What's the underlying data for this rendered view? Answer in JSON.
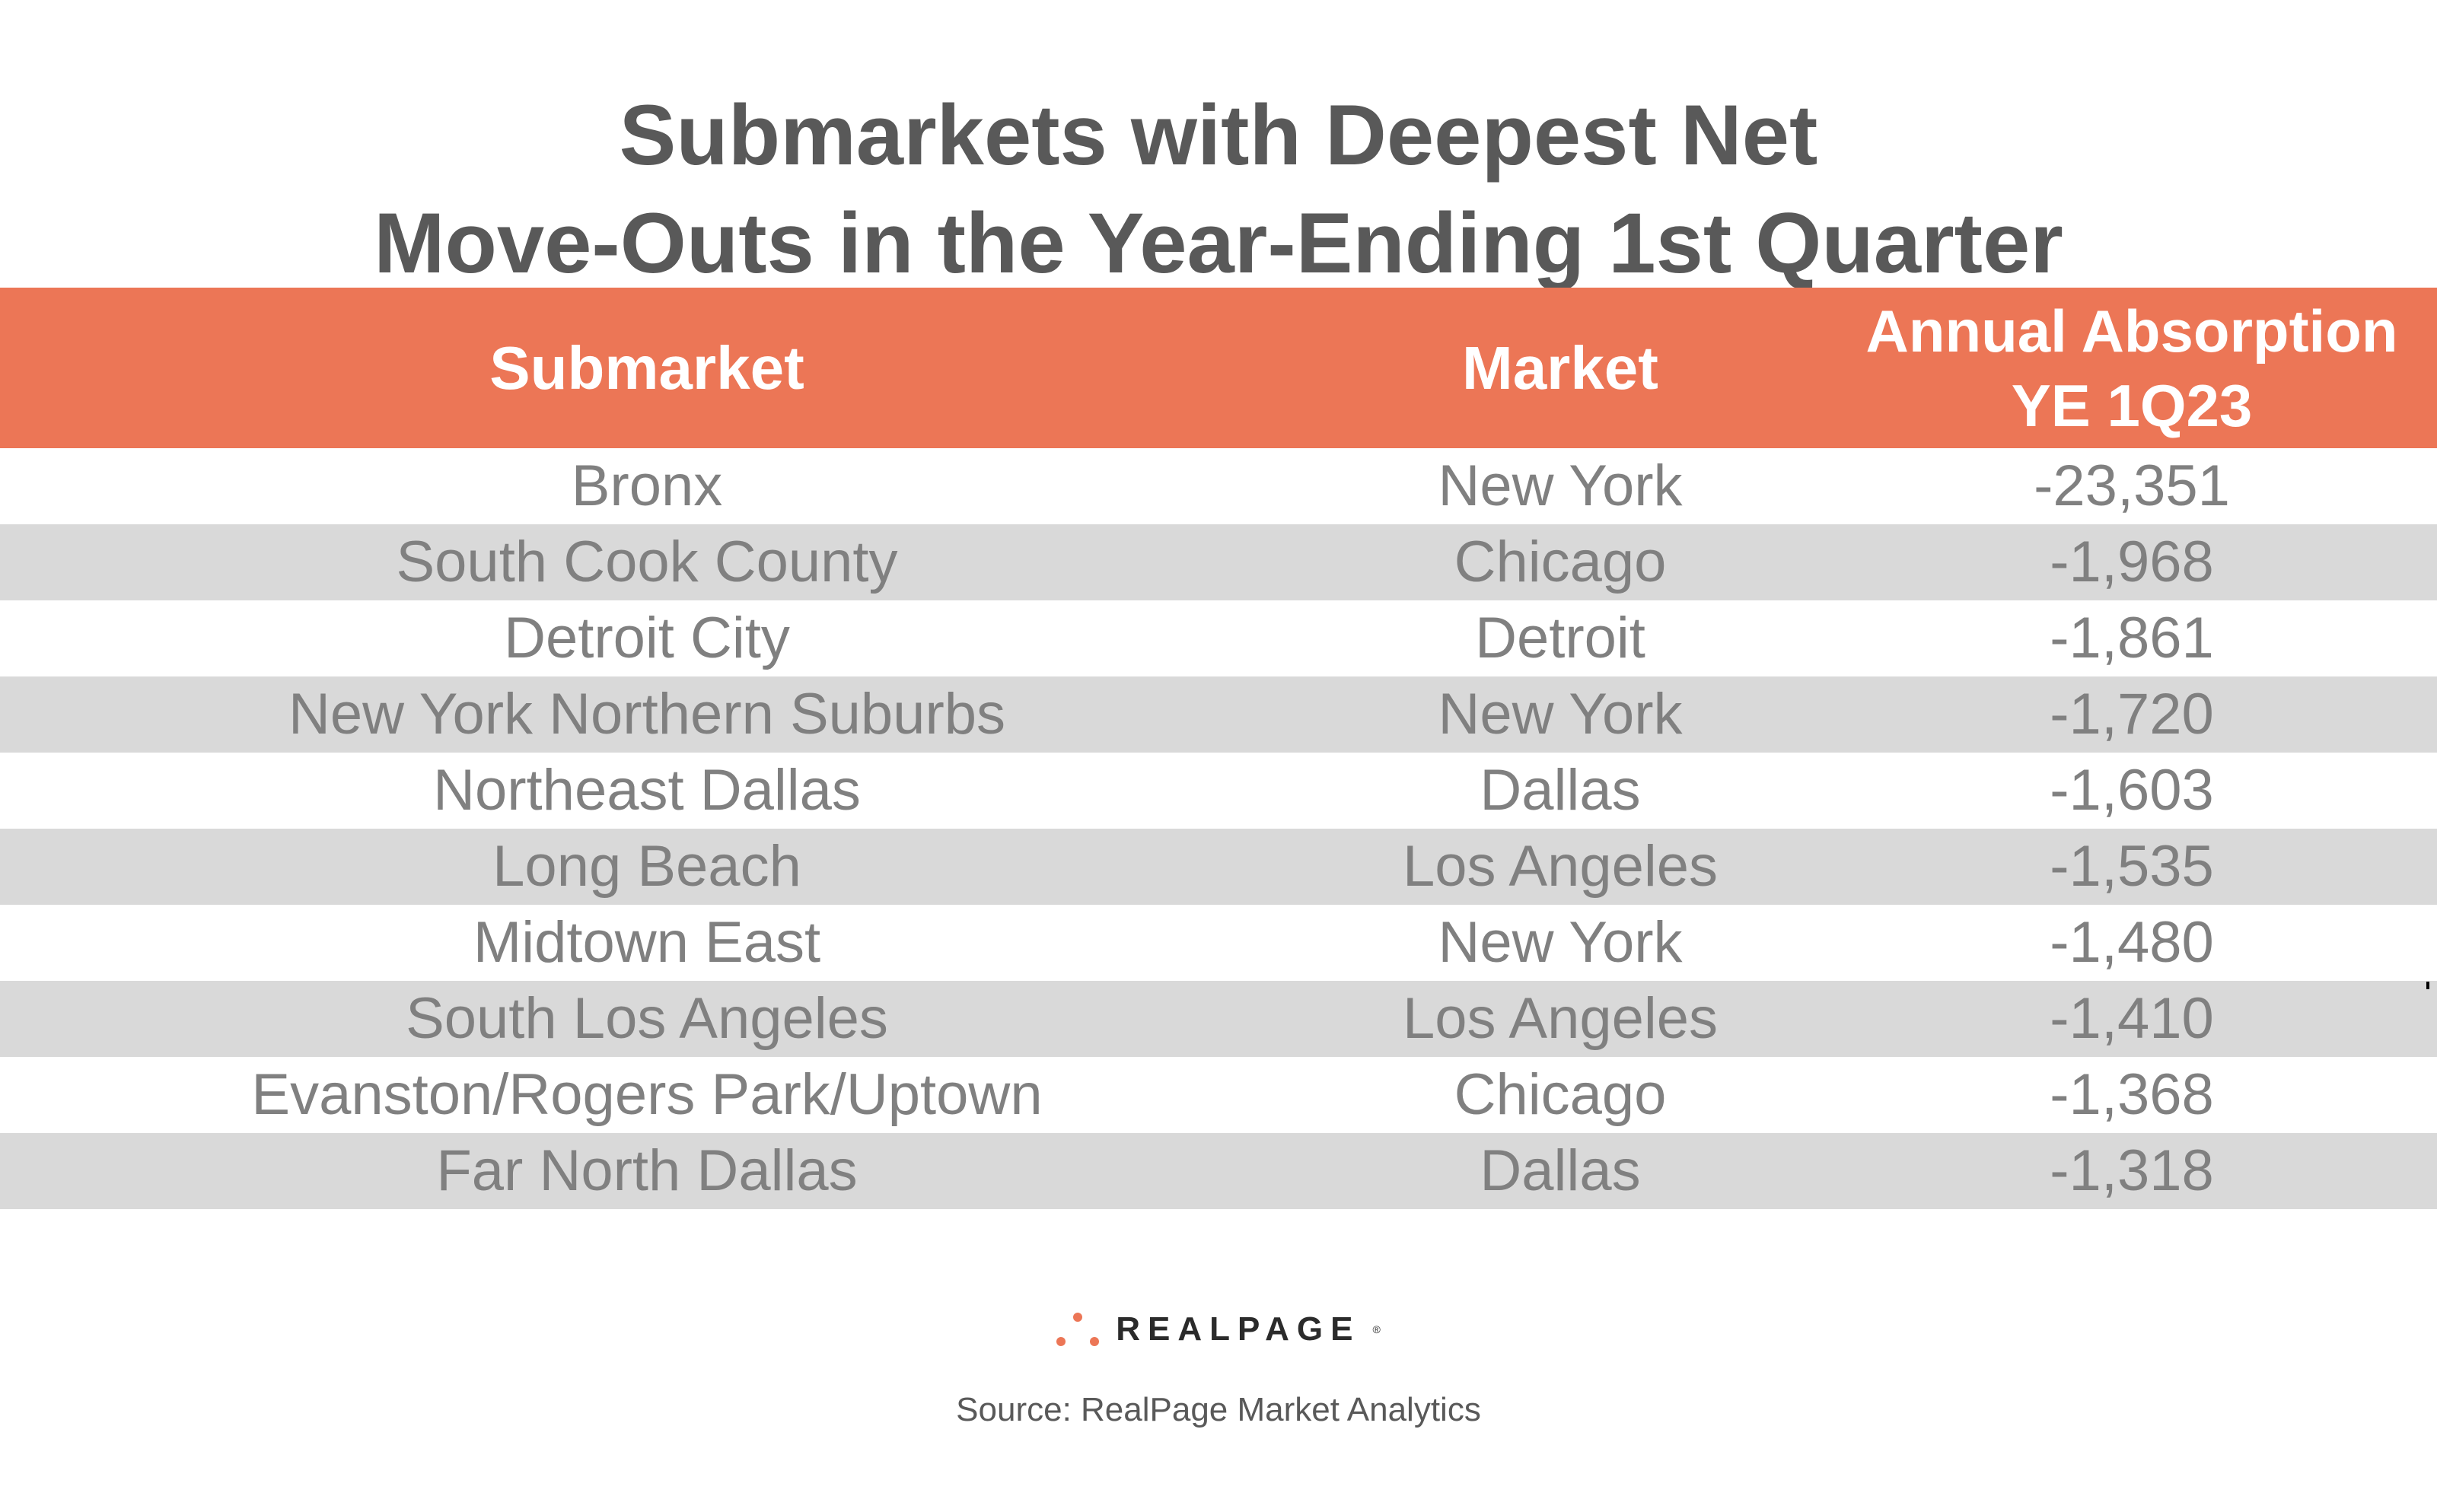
{
  "chart_data": {
    "type": "table",
    "title": "Submarkets with Deepest Net Move-Outs in the Year-Ending 1st Quarter",
    "title_lines": [
      "Submarkets with Deepest Net",
      "Move-Outs in the Year-Ending 1st Quarter"
    ],
    "columns": [
      "Submarket",
      "Market",
      "Annual Absorption YE 1Q23"
    ],
    "column_header_lines": {
      "submarket": "Submarket",
      "market": "Market",
      "absorption_line1": "Annual Absorption",
      "absorption_line2": "YE 1Q23"
    },
    "rows": [
      {
        "submarket": "Bronx",
        "market": "New York",
        "absorption": "-23,351",
        "value": -23351
      },
      {
        "submarket": "South Cook County",
        "market": "Chicago",
        "absorption": "-1,968",
        "value": -1968
      },
      {
        "submarket": "Detroit City",
        "market": "Detroit",
        "absorption": "-1,861",
        "value": -1861
      },
      {
        "submarket": "New York Northern Suburbs",
        "market": "New York",
        "absorption": "-1,720",
        "value": -1720
      },
      {
        "submarket": "Northeast Dallas",
        "market": "Dallas",
        "absorption": "-1,603",
        "value": -1603
      },
      {
        "submarket": "Long Beach",
        "market": "Los Angeles",
        "absorption": "-1,535",
        "value": -1535
      },
      {
        "submarket": "Midtown East",
        "market": "New York",
        "absorption": "-1,480",
        "value": -1480
      },
      {
        "submarket": "South Los Angeles",
        "market": "Los Angeles",
        "absorption": "-1,410",
        "value": -1410
      },
      {
        "submarket": "Evanston/Rogers Park/Uptown",
        "market": "Chicago",
        "absorption": "-1,368",
        "value": -1368
      },
      {
        "submarket": "Far North Dallas",
        "market": "Dallas",
        "absorption": "-1,318",
        "value": -1318
      }
    ]
  },
  "branding": {
    "logo_text": "REALPAGE",
    "logo_mark": "®",
    "source": "Source: RealPage Market Analytics"
  },
  "colors": {
    "header_bg": "#ec7656",
    "header_text": "#ffffff",
    "stripe": "#d9d9d9",
    "body_text": "#808080",
    "title_text": "#595959",
    "logo_dots": "#ec7656"
  }
}
